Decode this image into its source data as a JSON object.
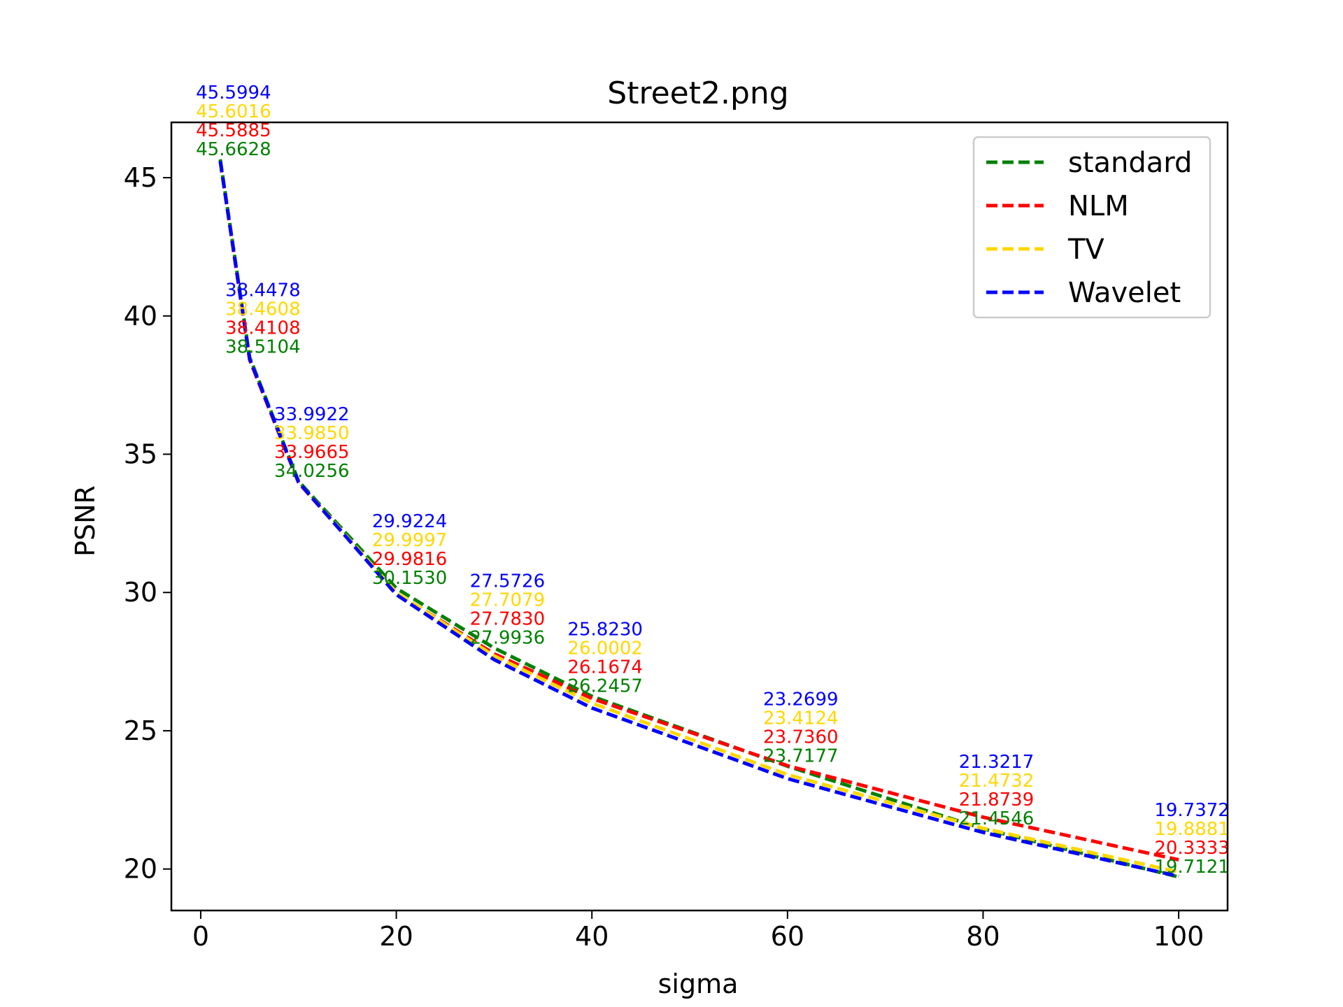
{
  "chart_data": {
    "type": "line",
    "title": "Street2.png",
    "xlabel": "sigma",
    "ylabel": "PSNR",
    "xlim": [
      -3,
      105
    ],
    "ylim": [
      18.5,
      47
    ],
    "xticks": [
      0,
      20,
      40,
      60,
      80,
      100
    ],
    "yticks": [
      20,
      25,
      30,
      35,
      40,
      45
    ],
    "x": [
      2,
      5,
      10,
      20,
      30,
      40,
      60,
      80,
      100
    ],
    "legend_position": "upper-right",
    "grid": false,
    "series": [
      {
        "name": "standard",
        "color": "#008000",
        "values": [
          45.6628,
          38.5104,
          34.0256,
          30.153,
          27.9936,
          26.2457,
          23.7177,
          21.4546,
          19.7121
        ],
        "labels": [
          "45.6628",
          "38.5104",
          "34.0256",
          "30.1530",
          "27.9936",
          "26.2457",
          "23.7177",
          "21.4546",
          "19.7121"
        ]
      },
      {
        "name": "NLM",
        "color": "#ff0000",
        "values": [
          45.5885,
          38.4108,
          33.9665,
          29.9816,
          27.783,
          26.1674,
          23.736,
          21.8739,
          20.3333
        ],
        "labels": [
          "45.5885",
          "38.4108",
          "33.9665",
          "29.9816",
          "27.7830",
          "26.1674",
          "23.7360",
          "21.8739",
          "20.3333"
        ]
      },
      {
        "name": "TV",
        "color": "#ffd700",
        "values": [
          45.6016,
          38.4608,
          33.985,
          29.9997,
          27.7079,
          26.0002,
          23.4124,
          21.4732,
          19.8881
        ],
        "labels": [
          "45.6016",
          "38.4608",
          "33.9850",
          "29.9997",
          "27.7079",
          "26.0002",
          "23.4124",
          "21.4732",
          "19.8881"
        ]
      },
      {
        "name": "Wavelet",
        "color": "#0000ff",
        "values": [
          45.5994,
          38.4478,
          33.9922,
          29.9224,
          27.5726,
          25.823,
          23.2699,
          21.3217,
          19.7372
        ],
        "labels": [
          "45.5994",
          "38.4478",
          "33.9922",
          "29.9224",
          "27.5726",
          "25.8230",
          "23.2699",
          "21.3217",
          "19.7372"
        ]
      }
    ]
  }
}
